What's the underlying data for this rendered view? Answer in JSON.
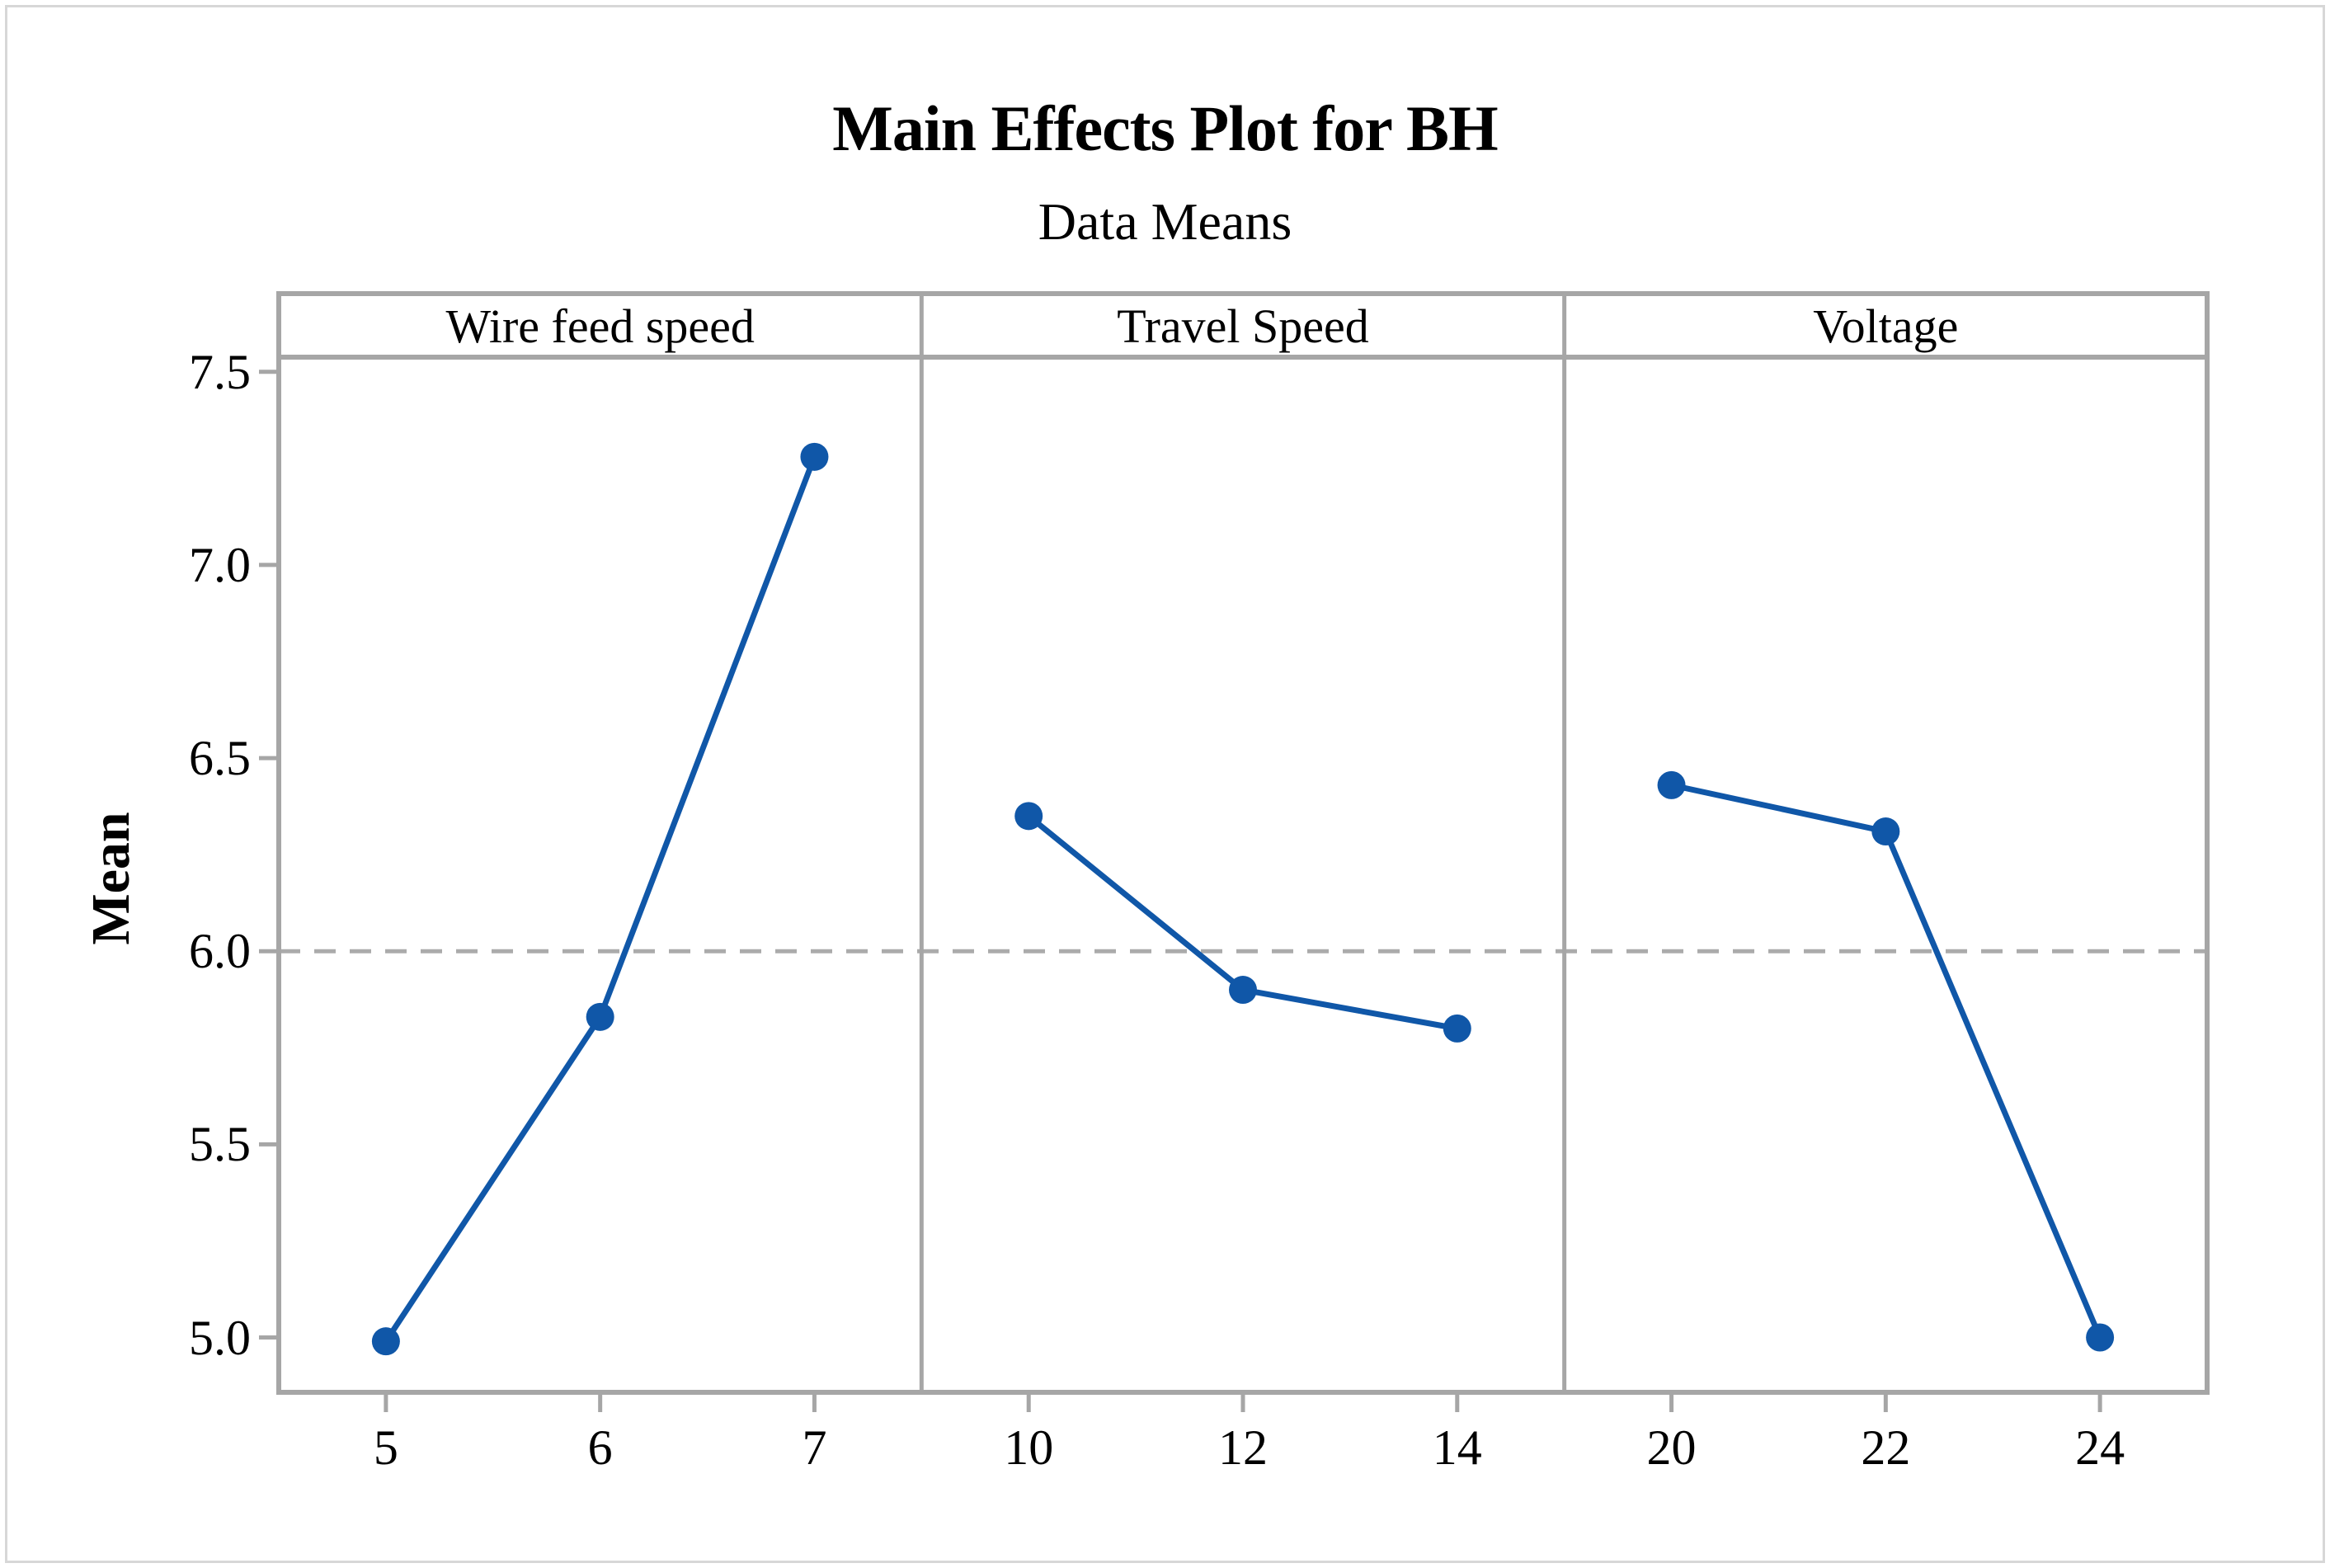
{
  "figure": {
    "title": "Main Effects Plot for BH",
    "subtitle": "Data Means",
    "ylabel": "Mean"
  },
  "chart_data": {
    "type": "line",
    "title": "Main Effects Plot for BH",
    "subtitle": "Data Means",
    "ylabel": "Mean",
    "ylim": [
      4.858,
      7.538
    ],
    "yticks": [
      5.0,
      5.5,
      6.0,
      6.5,
      7.0,
      7.5
    ],
    "yticklabels": [
      "5.0",
      "5.5",
      "6.0",
      "6.5",
      "7.0",
      "7.5"
    ],
    "reference_line_mean": 6.0,
    "grid": false,
    "legend": "none",
    "panels": [
      {
        "label": "Wire feed speed",
        "x": [
          5,
          6,
          7
        ],
        "xticklabels": [
          "5",
          "6",
          "7"
        ],
        "values": [
          4.99,
          5.83,
          7.28
        ]
      },
      {
        "label": "Travel Speed",
        "x": [
          10,
          12,
          14
        ],
        "xticklabels": [
          "10",
          "12",
          "14"
        ],
        "values": [
          6.35,
          5.9,
          5.8
        ]
      },
      {
        "label": "Voltage",
        "x": [
          20,
          22,
          24
        ],
        "xticklabels": [
          "20",
          "22",
          "24"
        ],
        "values": [
          6.43,
          6.31,
          5.0
        ]
      }
    ],
    "colors": {
      "series": "#1057a8",
      "axis": "#a6a6a6",
      "reference": "#ababab",
      "text": "#000000",
      "frame": "#d7d7d7",
      "background": "#ffffff"
    }
  }
}
